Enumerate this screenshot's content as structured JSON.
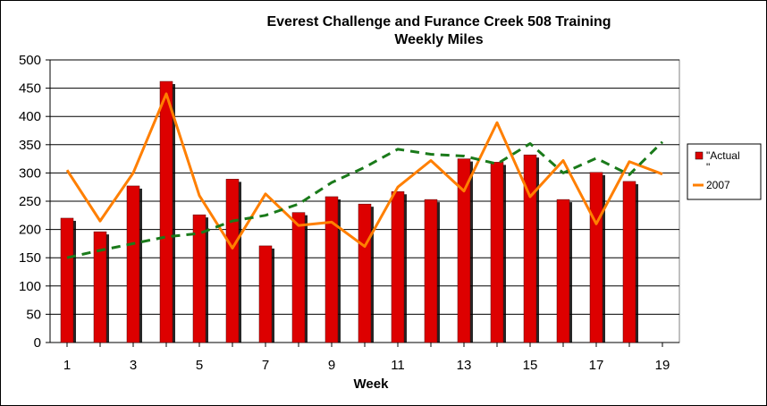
{
  "chart_data": {
    "type": "bar",
    "title_lines": [
      "Everest Challenge and Furance Creek 508 Training",
      "Weekly Miles"
    ],
    "xlabel": "Week",
    "ylabel": "",
    "ylim": [
      0,
      500
    ],
    "yticks": [
      0,
      50,
      100,
      150,
      200,
      250,
      300,
      350,
      400,
      450,
      500
    ],
    "xlim": [
      1,
      19
    ],
    "xticks": [
      1,
      3,
      5,
      7,
      9,
      11,
      13,
      15,
      17,
      19
    ],
    "grid": true,
    "legend_position": "right",
    "series": [
      {
        "name": "\"Actual\"",
        "legend_lines": [
          "\"Actual",
          "\""
        ],
        "type": "bar",
        "color": "#dd0000",
        "x": [
          1,
          2,
          3,
          4,
          5,
          6,
          7,
          8,
          9,
          10,
          11,
          12,
          13,
          14,
          15,
          16,
          17,
          18
        ],
        "values": [
          220,
          196,
          277,
          462,
          226,
          289,
          171,
          230,
          258,
          245,
          267,
          253,
          325,
          319,
          332,
          253,
          301,
          285
        ]
      },
      {
        "name": "2007",
        "type": "line",
        "color": "#ff7f00",
        "x": [
          1,
          2,
          3,
          4,
          5,
          6,
          7,
          8,
          9,
          10,
          11,
          12,
          13,
          14,
          15,
          16,
          17,
          18,
          19
        ],
        "values": [
          305,
          215,
          300,
          440,
          260,
          167,
          263,
          207,
          213,
          170,
          275,
          322,
          268,
          389,
          258,
          322,
          210,
          320,
          298
        ]
      },
      {
        "name": "",
        "type": "line",
        "style": "dashed",
        "color": "#1a7a1a",
        "x": [
          1,
          2,
          3,
          4,
          5,
          6,
          7,
          8,
          9,
          10,
          11,
          12,
          13,
          14,
          15,
          16,
          17,
          18,
          19
        ],
        "values": [
          150,
          163,
          175,
          187,
          193,
          215,
          225,
          245,
          283,
          310,
          342,
          333,
          330,
          316,
          352,
          300,
          326,
          297,
          355
        ]
      }
    ]
  }
}
